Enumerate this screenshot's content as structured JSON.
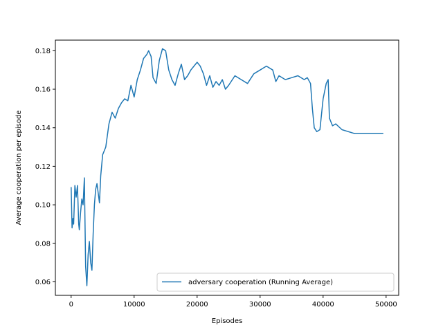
{
  "chart_data": {
    "type": "line",
    "title": "",
    "xlabel": "Episodes",
    "ylabel": "Average cooperation per episode",
    "xlim": [
      -2500,
      52000
    ],
    "ylim": [
      0.053,
      0.1855
    ],
    "xticks": [
      0,
      10000,
      20000,
      30000,
      40000,
      50000
    ],
    "xtick_labels": [
      "0",
      "10000",
      "20000",
      "30000",
      "40000",
      "50000"
    ],
    "yticks": [
      0.06,
      0.08,
      0.1,
      0.12,
      0.14,
      0.16,
      0.18
    ],
    "ytick_labels": [
      "0.06",
      "0.08",
      "0.10",
      "0.12",
      "0.14",
      "0.16",
      "0.18"
    ],
    "grid": false,
    "legend_position": "lower-right",
    "series": [
      {
        "name": "adversary cooperation (Running Average)",
        "color": "#1f77b4",
        "x": [
          0,
          150,
          300,
          400,
          600,
          800,
          1000,
          1200,
          1300,
          1500,
          1700,
          1900,
          2100,
          2300,
          2500,
          2700,
          2900,
          3100,
          3300,
          3500,
          3700,
          3900,
          4100,
          4300,
          4500,
          4700,
          5000,
          5500,
          6000,
          6500,
          7000,
          7500,
          8000,
          8500,
          9000,
          9500,
          10000,
          10500,
          11000,
          11500,
          12000,
          12300,
          12700,
          13000,
          13500,
          14000,
          14500,
          15000,
          15500,
          16000,
          16500,
          17000,
          17500,
          18000,
          18500,
          19000,
          19500,
          20000,
          20500,
          21000,
          21500,
          22000,
          22500,
          23000,
          23500,
          24000,
          24500,
          25000,
          26000,
          27000,
          28000,
          29000,
          30000,
          31000,
          32000,
          32500,
          33000,
          34000,
          35000,
          36000,
          37000,
          37500,
          38000,
          38300,
          38600,
          39000,
          39500,
          40000,
          40500,
          40800,
          41000,
          41500,
          42000,
          43000,
          44000,
          45000,
          46000,
          47000,
          48000,
          49500
        ],
        "y": [
          0.109,
          0.088,
          0.093,
          0.09,
          0.11,
          0.104,
          0.11,
          0.09,
          0.087,
          0.096,
          0.103,
          0.1,
          0.114,
          0.068,
          0.058,
          0.074,
          0.081,
          0.07,
          0.066,
          0.085,
          0.1,
          0.108,
          0.111,
          0.106,
          0.101,
          0.115,
          0.126,
          0.13,
          0.142,
          0.148,
          0.145,
          0.15,
          0.153,
          0.155,
          0.154,
          0.162,
          0.156,
          0.165,
          0.17,
          0.176,
          0.178,
          0.18,
          0.177,
          0.166,
          0.163,
          0.175,
          0.181,
          0.18,
          0.17,
          0.165,
          0.162,
          0.168,
          0.173,
          0.165,
          0.167,
          0.17,
          0.172,
          0.174,
          0.172,
          0.168,
          0.162,
          0.167,
          0.161,
          0.164,
          0.162,
          0.165,
          0.16,
          0.162,
          0.167,
          0.165,
          0.163,
          0.168,
          0.17,
          0.172,
          0.17,
          0.164,
          0.167,
          0.165,
          0.166,
          0.167,
          0.165,
          0.166,
          0.163,
          0.15,
          0.14,
          0.138,
          0.139,
          0.155,
          0.163,
          0.165,
          0.145,
          0.141,
          0.142,
          0.139,
          0.138,
          0.137,
          0.137,
          0.137,
          0.137,
          0.137
        ]
      }
    ]
  }
}
